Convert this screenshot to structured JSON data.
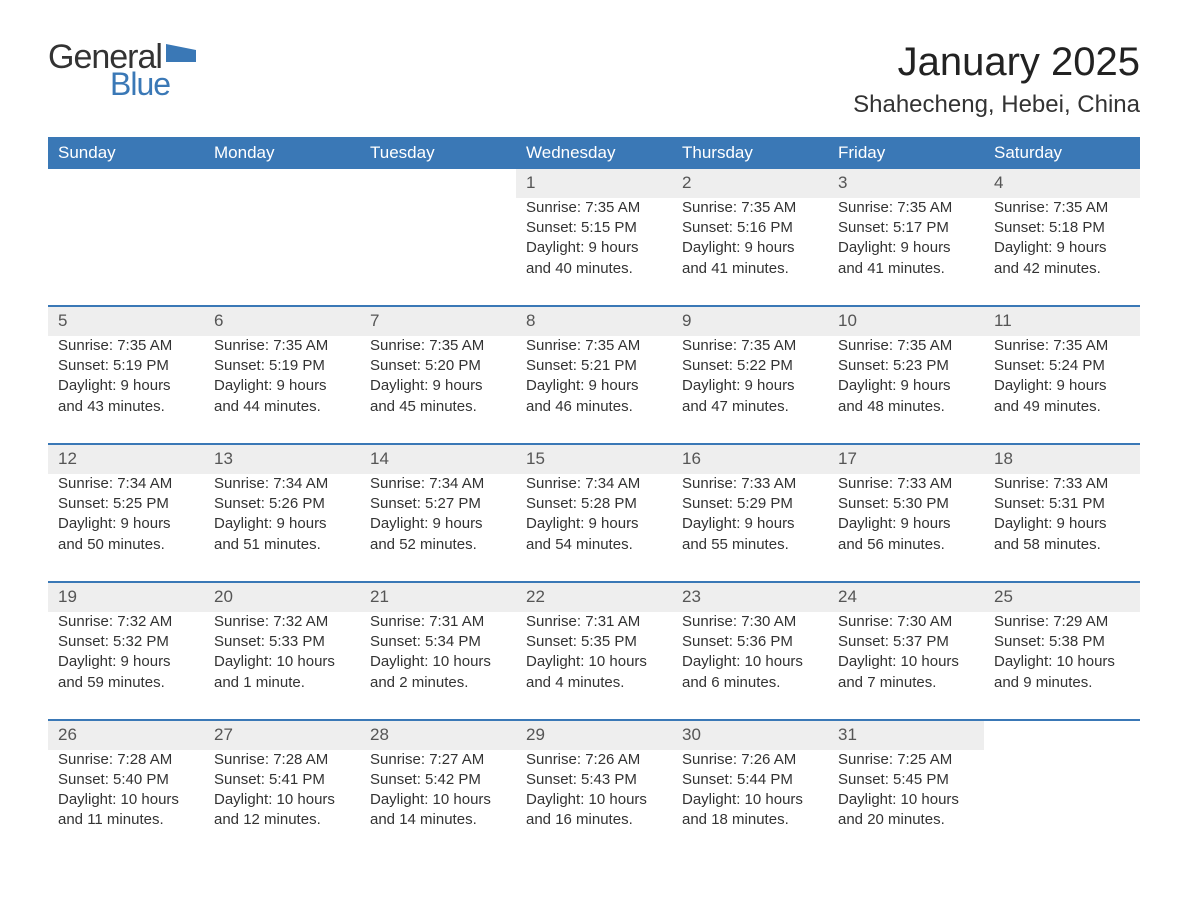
{
  "logo": {
    "text1": "General",
    "text2": "Blue",
    "flag_color": "#3a78b6"
  },
  "title": "January 2025",
  "location": "Shahecheng, Hebei, China",
  "colors": {
    "header_bg": "#3a78b6",
    "header_text": "#ffffff",
    "daynum_bg": "#eeeeee",
    "border": "#3a78b6",
    "text": "#333333",
    "background": "#ffffff"
  },
  "day_headers": [
    "Sunday",
    "Monday",
    "Tuesday",
    "Wednesday",
    "Thursday",
    "Friday",
    "Saturday"
  ],
  "weeks": [
    {
      "nums": [
        "",
        "",
        "",
        "1",
        "2",
        "3",
        "4"
      ],
      "info": [
        "",
        "",
        "",
        "Sunrise: 7:35 AM\nSunset: 5:15 PM\nDaylight: 9 hours and 40 minutes.",
        "Sunrise: 7:35 AM\nSunset: 5:16 PM\nDaylight: 9 hours and 41 minutes.",
        "Sunrise: 7:35 AM\nSunset: 5:17 PM\nDaylight: 9 hours and 41 minutes.",
        "Sunrise: 7:35 AM\nSunset: 5:18 PM\nDaylight: 9 hours and 42 minutes."
      ]
    },
    {
      "nums": [
        "5",
        "6",
        "7",
        "8",
        "9",
        "10",
        "11"
      ],
      "info": [
        "Sunrise: 7:35 AM\nSunset: 5:19 PM\nDaylight: 9 hours and 43 minutes.",
        "Sunrise: 7:35 AM\nSunset: 5:19 PM\nDaylight: 9 hours and 44 minutes.",
        "Sunrise: 7:35 AM\nSunset: 5:20 PM\nDaylight: 9 hours and 45 minutes.",
        "Sunrise: 7:35 AM\nSunset: 5:21 PM\nDaylight: 9 hours and 46 minutes.",
        "Sunrise: 7:35 AM\nSunset: 5:22 PM\nDaylight: 9 hours and 47 minutes.",
        "Sunrise: 7:35 AM\nSunset: 5:23 PM\nDaylight: 9 hours and 48 minutes.",
        "Sunrise: 7:35 AM\nSunset: 5:24 PM\nDaylight: 9 hours and 49 minutes."
      ]
    },
    {
      "nums": [
        "12",
        "13",
        "14",
        "15",
        "16",
        "17",
        "18"
      ],
      "info": [
        "Sunrise: 7:34 AM\nSunset: 5:25 PM\nDaylight: 9 hours and 50 minutes.",
        "Sunrise: 7:34 AM\nSunset: 5:26 PM\nDaylight: 9 hours and 51 minutes.",
        "Sunrise: 7:34 AM\nSunset: 5:27 PM\nDaylight: 9 hours and 52 minutes.",
        "Sunrise: 7:34 AM\nSunset: 5:28 PM\nDaylight: 9 hours and 54 minutes.",
        "Sunrise: 7:33 AM\nSunset: 5:29 PM\nDaylight: 9 hours and 55 minutes.",
        "Sunrise: 7:33 AM\nSunset: 5:30 PM\nDaylight: 9 hours and 56 minutes.",
        "Sunrise: 7:33 AM\nSunset: 5:31 PM\nDaylight: 9 hours and 58 minutes."
      ]
    },
    {
      "nums": [
        "19",
        "20",
        "21",
        "22",
        "23",
        "24",
        "25"
      ],
      "info": [
        "Sunrise: 7:32 AM\nSunset: 5:32 PM\nDaylight: 9 hours and 59 minutes.",
        "Sunrise: 7:32 AM\nSunset: 5:33 PM\nDaylight: 10 hours and 1 minute.",
        "Sunrise: 7:31 AM\nSunset: 5:34 PM\nDaylight: 10 hours and 2 minutes.",
        "Sunrise: 7:31 AM\nSunset: 5:35 PM\nDaylight: 10 hours and 4 minutes.",
        "Sunrise: 7:30 AM\nSunset: 5:36 PM\nDaylight: 10 hours and 6 minutes.",
        "Sunrise: 7:30 AM\nSunset: 5:37 PM\nDaylight: 10 hours and 7 minutes.",
        "Sunrise: 7:29 AM\nSunset: 5:38 PM\nDaylight: 10 hours and 9 minutes."
      ]
    },
    {
      "nums": [
        "26",
        "27",
        "28",
        "29",
        "30",
        "31",
        ""
      ],
      "info": [
        "Sunrise: 7:28 AM\nSunset: 5:40 PM\nDaylight: 10 hours and 11 minutes.",
        "Sunrise: 7:28 AM\nSunset: 5:41 PM\nDaylight: 10 hours and 12 minutes.",
        "Sunrise: 7:27 AM\nSunset: 5:42 PM\nDaylight: 10 hours and 14 minutes.",
        "Sunrise: 7:26 AM\nSunset: 5:43 PM\nDaylight: 10 hours and 16 minutes.",
        "Sunrise: 7:26 AM\nSunset: 5:44 PM\nDaylight: 10 hours and 18 minutes.",
        "Sunrise: 7:25 AM\nSunset: 5:45 PM\nDaylight: 10 hours and 20 minutes.",
        ""
      ]
    }
  ]
}
